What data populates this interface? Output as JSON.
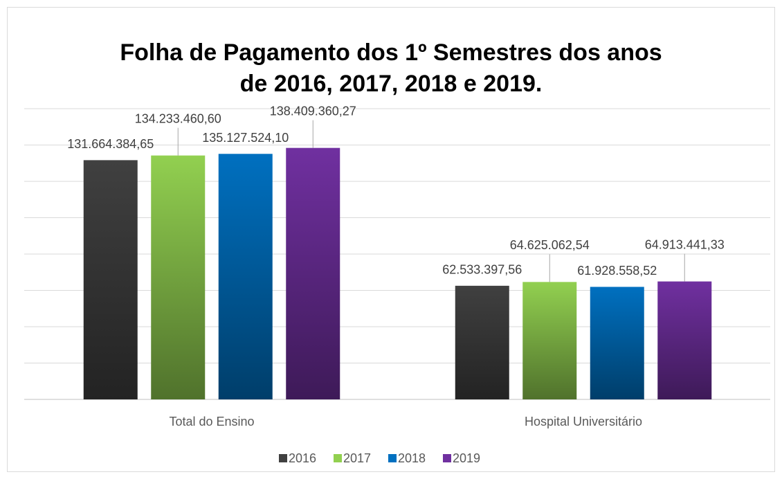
{
  "chart_data": {
    "type": "bar",
    "title": [
      "Folha de Pagamento dos 1º Semestres dos anos",
      "de 2016, 2017, 2018 e 2019."
    ],
    "categories": [
      "Total do Ensino",
      "Hospital Universitário"
    ],
    "series": [
      {
        "name": "2016",
        "color": "#404040",
        "values": [
          131664384.65,
          62533397.56
        ],
        "value_labels": [
          "131.664.384,65",
          "62.533.397,56"
        ]
      },
      {
        "name": "2017",
        "color": "#92d050",
        "values": [
          134233460.6,
          64625062.54
        ],
        "value_labels": [
          "134.233.460,60",
          "64.625.062,54"
        ]
      },
      {
        "name": "2018",
        "color": "#0070c0",
        "values": [
          135127524.1,
          61928558.52
        ],
        "value_labels": [
          "135.127.524,10",
          "61.928.558,52"
        ]
      },
      {
        "name": "2019",
        "color": "#7030a0",
        "values": [
          138409360.27,
          64913441.33
        ],
        "value_labels": [
          "138.409.360,27",
          "64.913.441,33"
        ]
      }
    ],
    "ylim": [
      0,
      160000000
    ],
    "yticks": [
      0,
      20000000,
      40000000,
      60000000,
      80000000,
      100000000,
      120000000,
      140000000,
      160000000
    ],
    "grid": true,
    "legend": "bottom"
  }
}
